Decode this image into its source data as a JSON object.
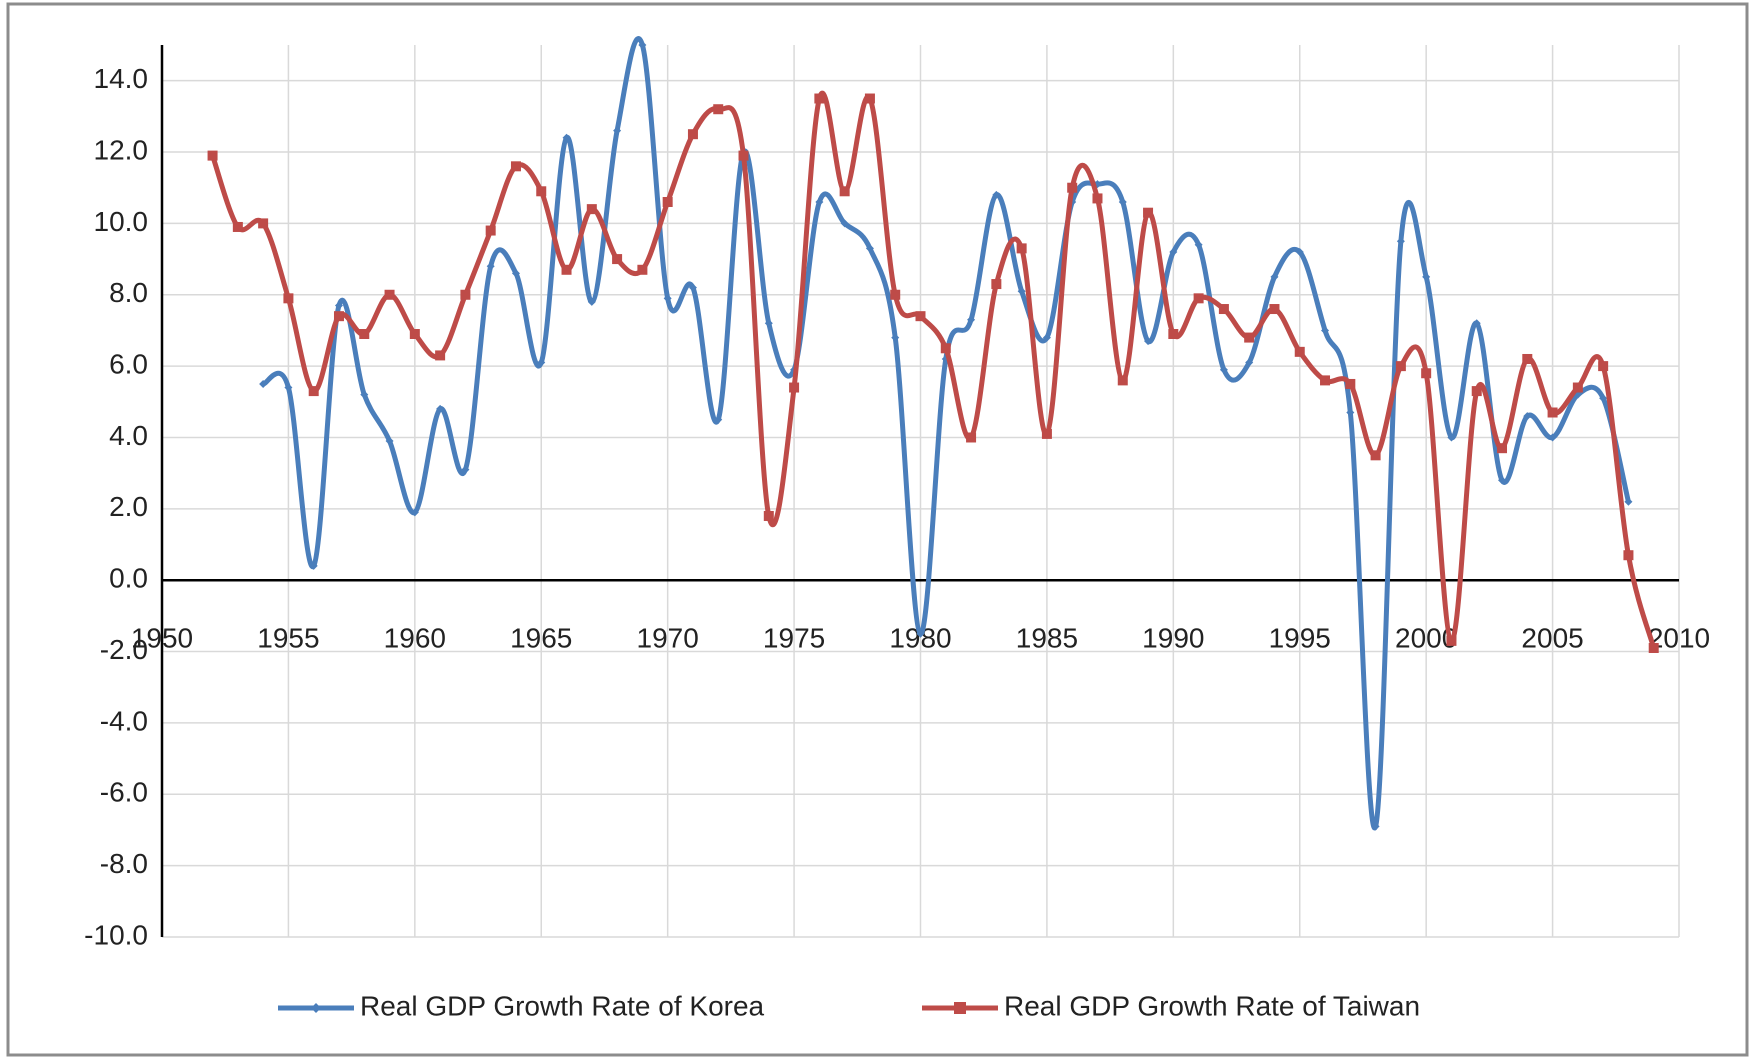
{
  "chart_data": {
    "type": "line",
    "x": [
      1952,
      1953,
      1954,
      1955,
      1956,
      1957,
      1958,
      1959,
      1960,
      1961,
      1962,
      1963,
      1964,
      1965,
      1966,
      1967,
      1968,
      1969,
      1970,
      1971,
      1972,
      1973,
      1974,
      1975,
      1976,
      1977,
      1978,
      1979,
      1980,
      1981,
      1982,
      1983,
      1984,
      1985,
      1986,
      1987,
      1988,
      1989,
      1990,
      1991,
      1992,
      1993,
      1994,
      1995,
      1996,
      1997,
      1998,
      1999,
      2000,
      2001,
      2002,
      2003,
      2004,
      2005,
      2006,
      2007,
      2008,
      2009
    ],
    "series": [
      {
        "name": "Real GDP Growth Rate of Korea",
        "color": "#4a7ebb",
        "marker": "diamond",
        "values": [
          null,
          null,
          5.5,
          5.4,
          0.4,
          7.7,
          5.2,
          3.9,
          1.9,
          4.8,
          3.1,
          8.8,
          8.6,
          6.1,
          12.4,
          7.8,
          12.6,
          15.0,
          7.9,
          8.2,
          4.5,
          12.0,
          7.2,
          5.9,
          10.6,
          10.0,
          9.3,
          6.8,
          -1.5,
          6.2,
          7.3,
          10.8,
          8.1,
          6.8,
          10.6,
          11.1,
          10.6,
          6.7,
          9.2,
          9.4,
          5.9,
          6.1,
          8.5,
          9.2,
          7.0,
          4.7,
          -6.9,
          9.5,
          8.5,
          4.0,
          7.2,
          2.8,
          4.6,
          4.0,
          5.2,
          5.1,
          2.2,
          null
        ]
      },
      {
        "name": "Real GDP Growth Rate of Taiwan",
        "color": "#be4b48",
        "marker": "square",
        "values": [
          11.9,
          9.9,
          10.0,
          7.9,
          5.3,
          7.4,
          6.9,
          8.0,
          6.9,
          6.3,
          8.0,
          9.8,
          11.6,
          10.9,
          8.7,
          10.4,
          9.0,
          8.7,
          10.6,
          12.5,
          13.2,
          11.9,
          1.8,
          5.4,
          13.5,
          10.9,
          13.5,
          8.0,
          7.4,
          6.5,
          4.0,
          8.3,
          9.3,
          4.1,
          11.0,
          10.7,
          5.6,
          10.3,
          6.9,
          7.9,
          7.6,
          6.8,
          7.6,
          6.4,
          5.6,
          5.5,
          3.5,
          6.0,
          5.8,
          -1.7,
          5.3,
          3.7,
          6.2,
          4.7,
          5.4,
          6.0,
          0.7,
          -1.9
        ]
      }
    ],
    "xlim": [
      1950,
      2010
    ],
    "xticks": [
      1950,
      1955,
      1960,
      1965,
      1970,
      1975,
      1980,
      1985,
      1990,
      1995,
      2000,
      2005,
      2010
    ],
    "ylim": [
      -10,
      15
    ],
    "yticks": [
      {
        "value": -10,
        "label": "-10.0"
      },
      {
        "value": -8,
        "label": "-8.0"
      },
      {
        "value": -6,
        "label": "-6.0"
      },
      {
        "value": -4,
        "label": "-4.0"
      },
      {
        "value": -2,
        "label": "-2.0"
      },
      {
        "value": 0,
        "label": "0.0"
      },
      {
        "value": 2,
        "label": "2.0"
      },
      {
        "value": 4,
        "label": "4.0"
      },
      {
        "value": 6,
        "label": "6.0"
      },
      {
        "value": 8,
        "label": "8.0"
      },
      {
        "value": 10,
        "label": "10.0"
      },
      {
        "value": 12,
        "label": "12.0"
      },
      {
        "value": 14,
        "label": "14.0"
      }
    ],
    "grid": true,
    "smooth": true,
    "legend": "bottom"
  }
}
